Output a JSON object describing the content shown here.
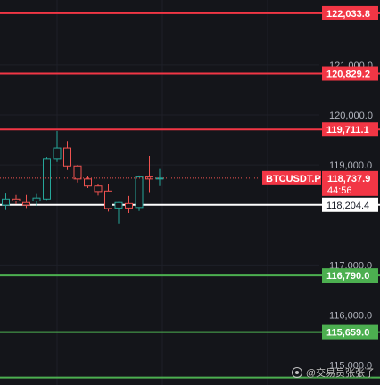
{
  "chart_data": {
    "type": "candlestick",
    "symbol_label": "BTCUSDT.P",
    "current_price": 118737.9,
    "current_price_label": "118,737.9",
    "countdown": "44:56",
    "ylim": [
      114600,
      122300
    ],
    "y_ticks": [
      {
        "value": 121000,
        "label": "121,000.0"
      },
      {
        "value": 120000,
        "label": "120,000.0"
      },
      {
        "value": 119000,
        "label": "119,000.0"
      },
      {
        "value": 117000,
        "label": "117,000.0"
      },
      {
        "value": 116000,
        "label": "116,000.0"
      },
      {
        "value": 115000,
        "label": "115,000.0"
      }
    ],
    "levels": [
      {
        "value": 122033.8,
        "label": "122,033.8",
        "kind": "resistance"
      },
      {
        "value": 120829.2,
        "label": "120,829.2",
        "kind": "resistance"
      },
      {
        "value": 119711.1,
        "label": "119,711.1",
        "kind": "resistance"
      },
      {
        "value": 118204.4,
        "label": "118,204.4",
        "kind": "pivot"
      },
      {
        "value": 116790.0,
        "label": "116,790.0",
        "kind": "support"
      },
      {
        "value": 115659.0,
        "label": "115,659.0",
        "kind": "support"
      },
      {
        "value": 114750.0,
        "label": "",
        "kind": "support"
      }
    ],
    "candles": [
      {
        "o": 118200,
        "h": 118430,
        "l": 118100,
        "c": 118320
      },
      {
        "o": 118320,
        "h": 118400,
        "l": 118220,
        "c": 118280
      },
      {
        "o": 118250,
        "h": 118400,
        "l": 118140,
        "c": 118200
      },
      {
        "o": 118280,
        "h": 118420,
        "l": 118180,
        "c": 118340
      },
      {
        "o": 118320,
        "h": 119160,
        "l": 118300,
        "c": 119130
      },
      {
        "o": 119130,
        "h": 119680,
        "l": 119060,
        "c": 119340
      },
      {
        "o": 119340,
        "h": 119480,
        "l": 118900,
        "c": 118980
      },
      {
        "o": 118980,
        "h": 119000,
        "l": 118650,
        "c": 118720
      },
      {
        "o": 118720,
        "h": 118780,
        "l": 118540,
        "c": 118580
      },
      {
        "o": 118580,
        "h": 118620,
        "l": 118390,
        "c": 118470
      },
      {
        "o": 118480,
        "h": 118620,
        "l": 118070,
        "c": 118130
      },
      {
        "o": 118140,
        "h": 118260,
        "l": 117830,
        "c": 118250
      },
      {
        "o": 118230,
        "h": 118380,
        "l": 118040,
        "c": 118140
      },
      {
        "o": 118150,
        "h": 118790,
        "l": 118080,
        "c": 118760
      },
      {
        "o": 118760,
        "h": 119180,
        "l": 118460,
        "c": 118720
      },
      {
        "o": 118720,
        "h": 118920,
        "l": 118580,
        "c": 118737.9
      }
    ],
    "colors": {
      "background": "#14151a",
      "up": "#26a69a",
      "down": "#ef5350",
      "resistance": "#f23645",
      "support": "#4caf50",
      "pivot": "#ffffff",
      "axis_text": "#b2b5be",
      "grid": "#1e2028"
    }
  },
  "watermark": {
    "text": "@交易员张张子",
    "icon": "weibo-icon"
  }
}
